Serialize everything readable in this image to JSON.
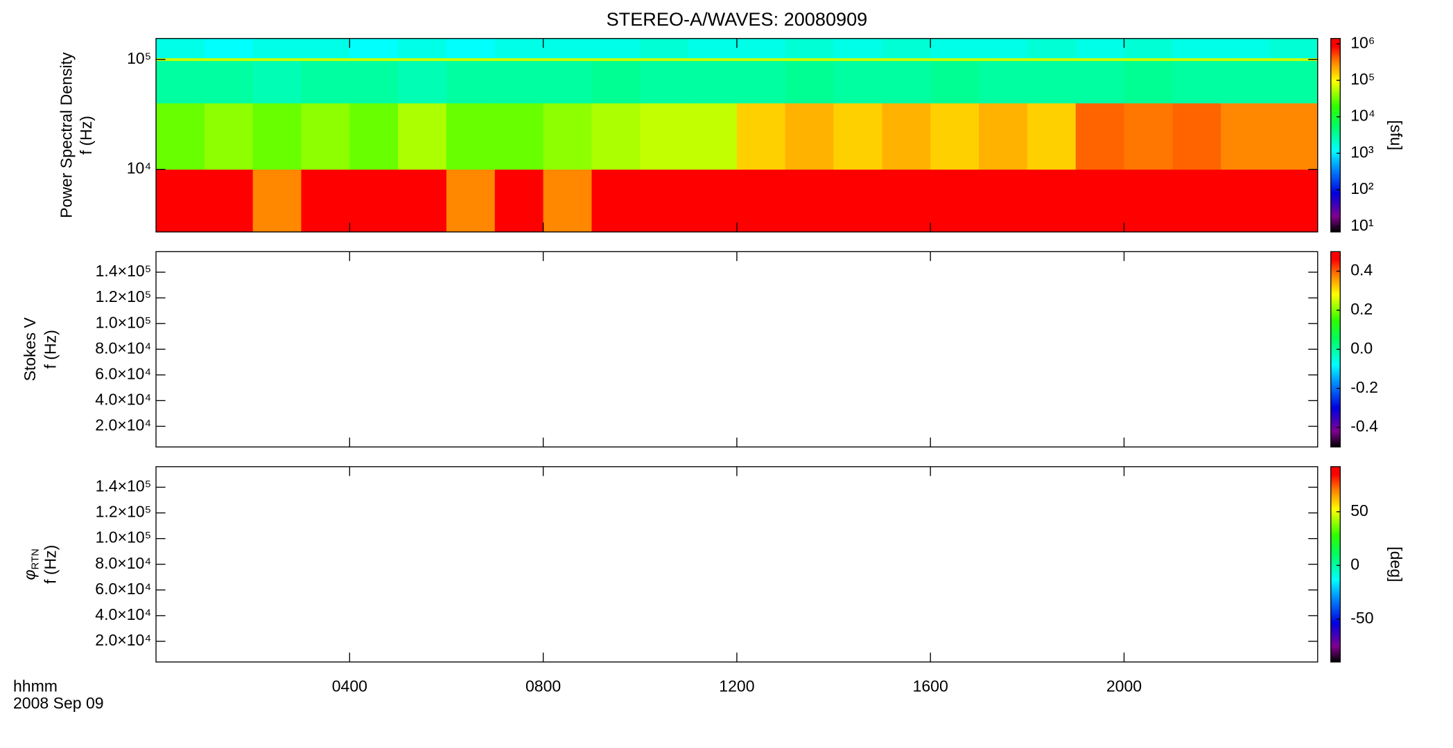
{
  "chart_data": [
    {
      "type": "spectrogram",
      "title": "STEREO-A/WAVES: 20080909",
      "ylabel": [
        "Power Spectral Density",
        "f (Hz)"
      ],
      "yscale": "log",
      "ylim": [
        2700,
        155000
      ],
      "yticks": [
        {
          "value": 10000,
          "label": "10⁴"
        },
        {
          "value": 100000,
          "label": "10⁵"
        }
      ],
      "time_edges": [
        0,
        1,
        2,
        3,
        4,
        5,
        6,
        7,
        8,
        9,
        10,
        11,
        12,
        13,
        14,
        15,
        16,
        17,
        18,
        19,
        20,
        21,
        22,
        23,
        24
      ],
      "freq_edges": [
        2700,
        10000,
        40000,
        97000,
        103000,
        155000
      ],
      "values": [
        [
          1000000,
          1000000,
          300000,
          1000000,
          1000000,
          1000000,
          300000,
          1000000,
          300000,
          1000000,
          1000000,
          1000000,
          1000000,
          1000000,
          1000000,
          1000000,
          1000000,
          1000000,
          1000000,
          1000000,
          1000000,
          1000000,
          1000000,
          1000000
        ],
        [
          30000,
          40000,
          30000,
          40000,
          30000,
          50000,
          30000,
          30000,
          40000,
          50000,
          60000,
          60000,
          150000,
          200000,
          150000,
          200000,
          150000,
          200000,
          150000,
          400000,
          350000,
          400000,
          300000,
          300000
        ],
        [
          3000,
          3000,
          2500,
          3000,
          3000,
          2500,
          3000,
          3000,
          3000,
          3500,
          3000,
          3000,
          3000,
          3500,
          3000,
          3000,
          3500,
          3000,
          3000,
          3000,
          3500,
          3000,
          3000,
          3000
        ],
        [
          60000,
          60000,
          60000,
          60000,
          60000,
          60000,
          60000,
          60000,
          60000,
          60000,
          60000,
          60000,
          60000,
          60000,
          60000,
          60000,
          60000,
          60000,
          60000,
          60000,
          60000,
          60000,
          60000,
          60000
        ],
        [
          1500,
          1200,
          1500,
          1500,
          1200,
          1500,
          1200,
          1500,
          1500,
          1500,
          1800,
          1500,
          1500,
          1800,
          1500,
          1800,
          1500,
          1500,
          1800,
          1500,
          1800,
          1500,
          1500,
          1800
        ]
      ],
      "colorbar": {
        "label": "[sfu]",
        "scale": "log",
        "clim": [
          7,
          1400000
        ],
        "ticks": [
          {
            "value": 10,
            "label": "10¹"
          },
          {
            "value": 100,
            "label": "10²"
          },
          {
            "value": 1000,
            "label": "10³"
          },
          {
            "value": 10000,
            "label": "10⁴"
          },
          {
            "value": 100000,
            "label": "10⁵"
          },
          {
            "value": 1000000,
            "label": "10⁶"
          }
        ]
      }
    },
    {
      "type": "spectrogram",
      "ylabel": [
        "Stokes V",
        "f (Hz)"
      ],
      "yscale": "linear",
      "ylim": [
        3900,
        156000
      ],
      "yticks": [
        {
          "value": 20000,
          "label": "2.0×10⁴"
        },
        {
          "value": 40000,
          "label": "4.0×10⁴"
        },
        {
          "value": 60000,
          "label": "6.0×10⁴"
        },
        {
          "value": 80000,
          "label": "8.0×10⁴"
        },
        {
          "value": 100000,
          "label": "1.0×10⁵"
        },
        {
          "value": 120000,
          "label": "1.2×10⁵"
        },
        {
          "value": 140000,
          "label": "1.4×10⁵"
        }
      ],
      "colorbar": {
        "scale": "linear",
        "clim": [
          -0.5,
          0.5
        ],
        "ticks": [
          -0.4,
          -0.2,
          {
            "value": 0,
            "label": "0.0"
          },
          0.2,
          0.4
        ]
      }
    },
    {
      "type": "spectrogram",
      "ylabel_symbol": "φ",
      "ylabel_subscript": "RTN",
      "ylabel": [
        "f (Hz)"
      ],
      "yscale": "linear",
      "ylim": [
        3900,
        156000
      ],
      "yticks": [
        {
          "value": 20000,
          "label": "2.0×10⁴"
        },
        {
          "value": 40000,
          "label": "4.0×10⁴"
        },
        {
          "value": 60000,
          "label": "6.0×10⁴"
        },
        {
          "value": 80000,
          "label": "8.0×10⁴"
        },
        {
          "value": 100000,
          "label": "1.0×10⁵"
        },
        {
          "value": 120000,
          "label": "1.2×10⁵"
        },
        {
          "value": 140000,
          "label": "1.4×10⁵"
        }
      ],
      "colorbar": {
        "label": "[deg]",
        "scale": "linear",
        "clim": [
          -90,
          92
        ],
        "ticks": [
          -50,
          0,
          50
        ]
      },
      "xlabel": "hhmm",
      "date_label": "2008 Sep 09",
      "xlim": [
        0,
        24
      ],
      "xticks": [
        {
          "value": 4,
          "label": "0400"
        },
        {
          "value": 8,
          "label": "0800"
        },
        {
          "value": 12,
          "label": "1200"
        },
        {
          "value": 16,
          "label": "1600"
        },
        {
          "value": 20,
          "label": "2000"
        }
      ]
    }
  ]
}
